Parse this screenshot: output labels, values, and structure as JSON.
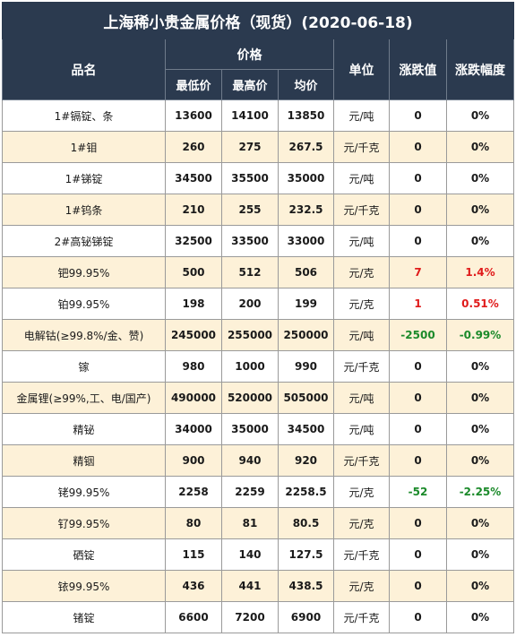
{
  "title": "上海稀小贵金属价格（现货）(2020-06-18)",
  "headers": {
    "name": "品名",
    "price_group": "价格",
    "low": "最低价",
    "high": "最高价",
    "avg": "均价",
    "unit": "单位",
    "change": "涨跌值",
    "change_pct": "涨跌幅度"
  },
  "colors": {
    "header_bg": "#2b3a4f",
    "alt_row": "#fdf1d8",
    "up": "#e01b1b",
    "down": "#1b8a2a"
  },
  "rows": [
    {
      "name": "1#镉锭、条",
      "low": "13600",
      "high": "14100",
      "avg": "13850",
      "unit": "元/吨",
      "change": "0",
      "pct": "0%",
      "dir": ""
    },
    {
      "name": "1#钼",
      "low": "260",
      "high": "275",
      "avg": "267.5",
      "unit": "元/千克",
      "change": "0",
      "pct": "0%",
      "dir": ""
    },
    {
      "name": "1#锑锭",
      "low": "34500",
      "high": "35500",
      "avg": "35000",
      "unit": "元/吨",
      "change": "0",
      "pct": "0%",
      "dir": ""
    },
    {
      "name": "1#钨条",
      "low": "210",
      "high": "255",
      "avg": "232.5",
      "unit": "元/千克",
      "change": "0",
      "pct": "0%",
      "dir": ""
    },
    {
      "name": "2#高铋锑锭",
      "low": "32500",
      "high": "33500",
      "avg": "33000",
      "unit": "元/吨",
      "change": "0",
      "pct": "0%",
      "dir": ""
    },
    {
      "name": "钯99.95%",
      "low": "500",
      "high": "512",
      "avg": "506",
      "unit": "元/克",
      "change": "7",
      "pct": "1.4%",
      "dir": "up"
    },
    {
      "name": "铂99.95%",
      "low": "198",
      "high": "200",
      "avg": "199",
      "unit": "元/克",
      "change": "1",
      "pct": "0.51%",
      "dir": "up"
    },
    {
      "name": "电解钴(≥99.8%/金、赞)",
      "low": "245000",
      "high": "255000",
      "avg": "250000",
      "unit": "元/吨",
      "change": "-2500",
      "pct": "-0.99%",
      "dir": "down"
    },
    {
      "name": "镓",
      "low": "980",
      "high": "1000",
      "avg": "990",
      "unit": "元/千克",
      "change": "0",
      "pct": "0%",
      "dir": ""
    },
    {
      "name": "金属锂(≥99%,工、电/国产)",
      "low": "490000",
      "high": "520000",
      "avg": "505000",
      "unit": "元/吨",
      "change": "0",
      "pct": "0%",
      "dir": ""
    },
    {
      "name": "精铋",
      "low": "34000",
      "high": "35000",
      "avg": "34500",
      "unit": "元/吨",
      "change": "0",
      "pct": "0%",
      "dir": ""
    },
    {
      "name": "精铟",
      "low": "900",
      "high": "940",
      "avg": "920",
      "unit": "元/千克",
      "change": "0",
      "pct": "0%",
      "dir": ""
    },
    {
      "name": "铑99.95%",
      "low": "2258",
      "high": "2259",
      "avg": "2258.5",
      "unit": "元/克",
      "change": "-52",
      "pct": "-2.25%",
      "dir": "down"
    },
    {
      "name": "钌99.95%",
      "low": "80",
      "high": "81",
      "avg": "80.5",
      "unit": "元/克",
      "change": "0",
      "pct": "0%",
      "dir": ""
    },
    {
      "name": "硒锭",
      "low": "115",
      "high": "140",
      "avg": "127.5",
      "unit": "元/千克",
      "change": "0",
      "pct": "0%",
      "dir": ""
    },
    {
      "name": "铱99.95%",
      "low": "436",
      "high": "441",
      "avg": "438.5",
      "unit": "元/克",
      "change": "0",
      "pct": "0%",
      "dir": ""
    },
    {
      "name": "锗锭",
      "low": "6600",
      "high": "7200",
      "avg": "6900",
      "unit": "元/千克",
      "change": "0",
      "pct": "0%",
      "dir": ""
    }
  ]
}
